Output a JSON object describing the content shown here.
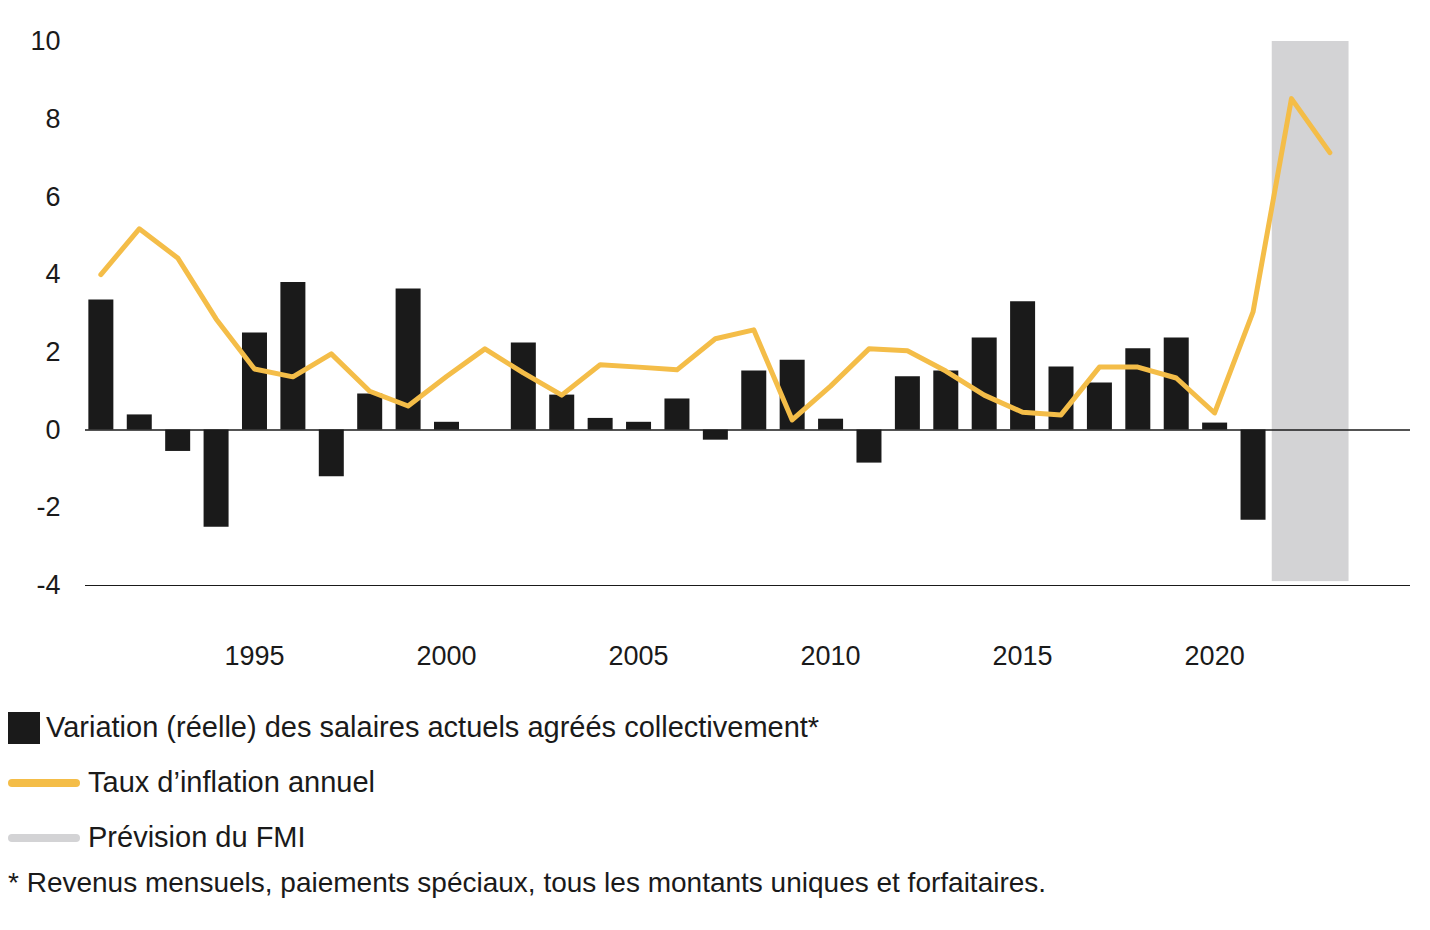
{
  "chart_data": {
    "type": "bar",
    "x": [
      1991,
      1992,
      1993,
      1994,
      1995,
      1996,
      1997,
      1998,
      1999,
      2000,
      2001,
      2002,
      2003,
      2004,
      2005,
      2006,
      2007,
      2008,
      2009,
      2010,
      2011,
      2012,
      2013,
      2014,
      2015,
      2016,
      2017,
      2018,
      2019,
      2020,
      2021,
      2022,
      2023
    ],
    "series": [
      {
        "name": "Variation (réelle) des salaires actuels agréés collectivement*",
        "type": "bar",
        "color": "#1a1a1a",
        "values": [
          3.35,
          0.39,
          -0.55,
          -2.5,
          2.5,
          3.8,
          -1.2,
          0.93,
          3.63,
          0.2,
          0,
          2.24,
          0.9,
          0.3,
          0.2,
          0.8,
          -0.26,
          1.52,
          1.8,
          0.28,
          -0.85,
          1.37,
          1.52,
          2.37,
          3.3,
          1.62,
          1.21,
          2.09,
          2.37,
          0.18,
          -2.32,
          null,
          null
        ]
      },
      {
        "name": "Taux d’inflation annuel",
        "type": "line",
        "color": "#f4bd48",
        "values": [
          4.0,
          5.18,
          4.43,
          2.86,
          1.57,
          1.37,
          1.96,
          1.0,
          0.62,
          1.38,
          2.09,
          1.47,
          0.9,
          1.68,
          1.62,
          1.55,
          2.35,
          2.58,
          0.26,
          1.13,
          2.09,
          2.04,
          1.52,
          0.9,
          0.46,
          0.39,
          1.62,
          1.62,
          1.34,
          0.44,
          3.04,
          8.53,
          7.14
        ]
      }
    ],
    "forecast_band": {
      "name": "Prévision du FMI",
      "color": "#d3d3d5",
      "x": [
        2021.5,
        2023.5
      ],
      "y": [
        -3.9,
        10
      ]
    },
    "footnote": "* Revenus mensuels, paiements spéciaux, tous les montants uniques et forfaitaires.",
    "xlim": [
      1990.6,
      2025.1
    ],
    "xticks": [
      1995,
      2000,
      2005,
      2010,
      2015,
      2020
    ],
    "ylim": [
      -4,
      10
    ],
    "yticks": [
      -4,
      -2,
      0,
      2,
      4,
      6,
      8,
      10
    ],
    "grid": false,
    "legend": "bottom"
  }
}
